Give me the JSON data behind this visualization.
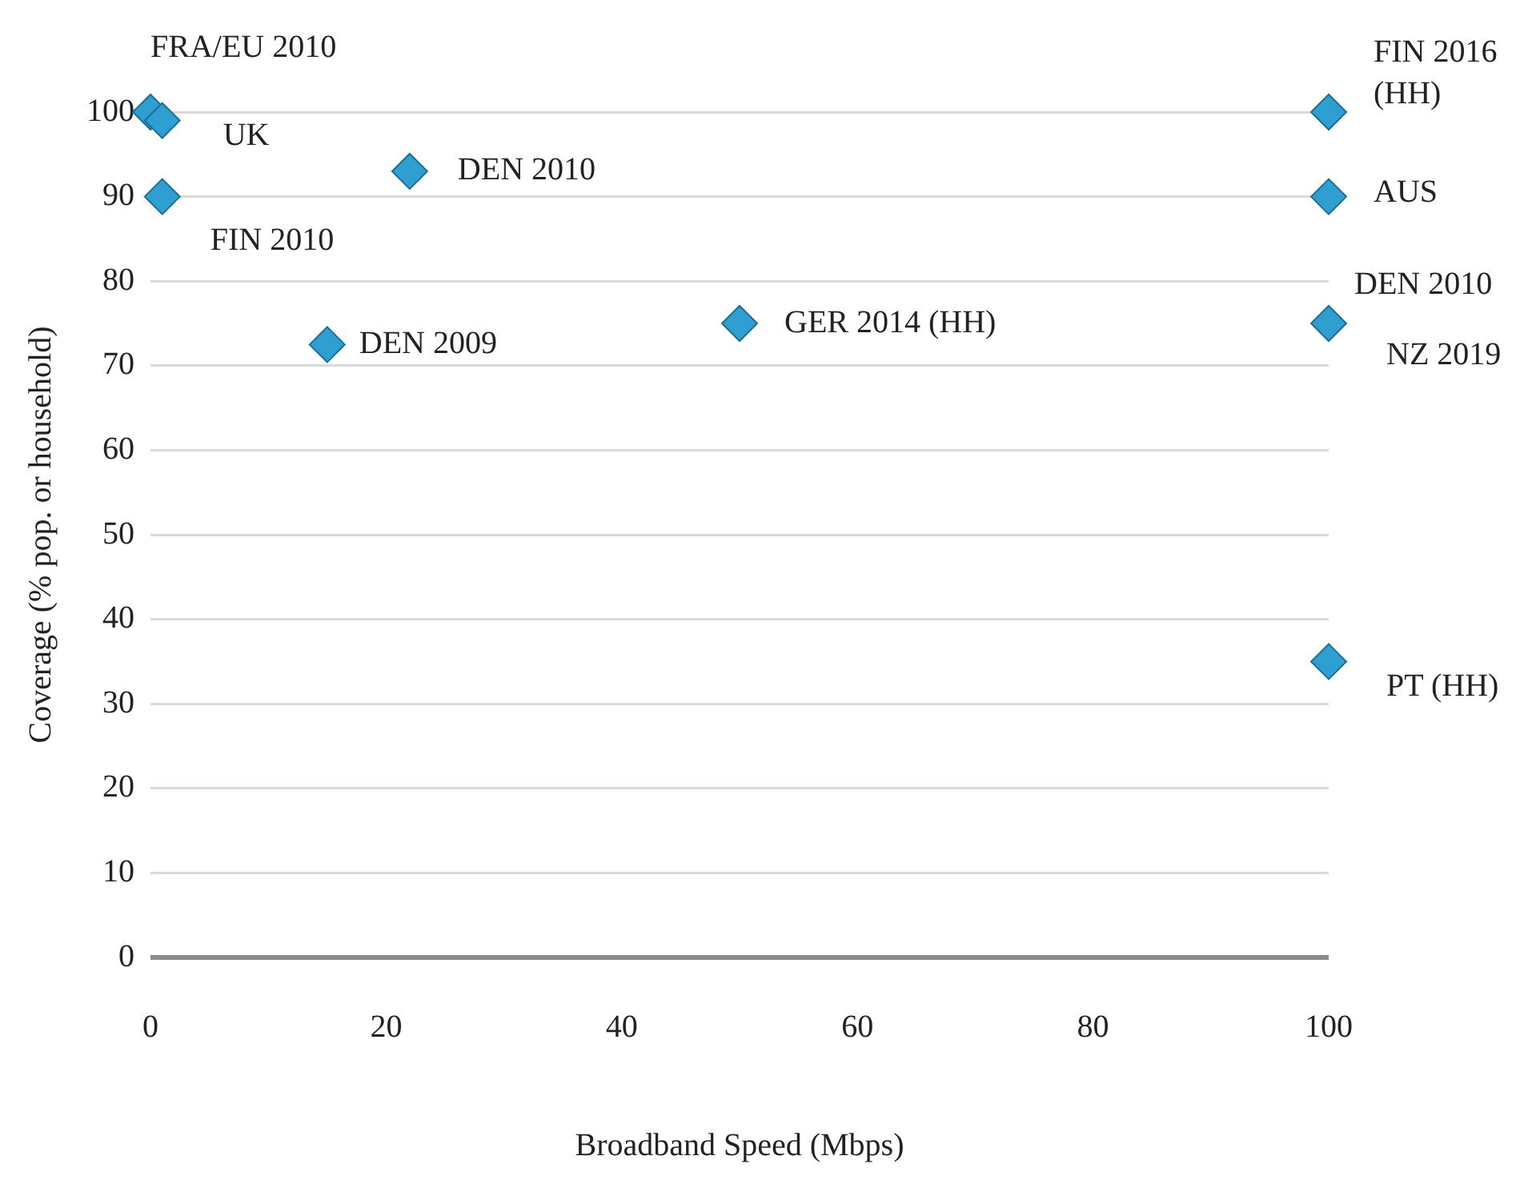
{
  "chart_data": {
    "type": "scatter",
    "xlabel": "Broadband Speed (Mbps)",
    "ylabel": "Coverage (% pop. or household)",
    "series": [
      {
        "color": "#2e9fd0",
        "x": [
          0,
          1,
          22,
          1,
          15,
          50,
          100,
          100,
          100,
          100
        ],
        "values": [
          100,
          99,
          93,
          90,
          72.5,
          75,
          100,
          90,
          75,
          35
        ]
      }
    ],
    "xlim": [
      0,
      100
    ],
    "xticks": [
      0,
      20,
      40,
      60,
      80,
      100
    ],
    "ylim": [
      0,
      100
    ],
    "yticks": [
      0,
      10,
      20,
      30,
      40,
      50,
      60,
      70,
      80,
      90,
      100
    ],
    "grid": "y",
    "legend": false,
    "marker": "diamond",
    "annotations": [
      {
        "text": "FRA/EU 2010",
        "x": 0,
        "y": 100
      },
      {
        "text": "UK",
        "x": 1,
        "y": 99
      },
      {
        "text": "DEN 2010",
        "x": 22,
        "y": 93
      },
      {
        "text": "FIN 2010",
        "x": 1,
        "y": 90
      },
      {
        "text": "DEN 2009",
        "x": 15,
        "y": 72.5
      },
      {
        "text": "GER 2014 (HH)",
        "x": 50,
        "y": 75
      },
      {
        "text": "FIN 2016 (HH)",
        "x": 100,
        "y": 100
      },
      {
        "text": "AUS",
        "x": 100,
        "y": 90
      },
      {
        "text": "DEN 2010",
        "x": 100,
        "y": 75
      },
      {
        "text": "NZ 2019",
        "x": 100,
        "y": 75
      },
      {
        "text": "PT (HH)",
        "x": 100,
        "y": 35
      }
    ]
  }
}
